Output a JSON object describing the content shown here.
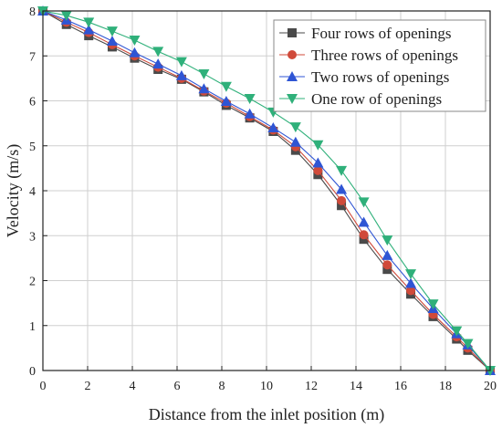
{
  "chart_data": {
    "type": "line",
    "title": "",
    "xlabel": "Distance from the inlet position (m)",
    "ylabel": "Velocity (m/s)",
    "xlim": [
      0,
      20
    ],
    "ylim": [
      0,
      8
    ],
    "xticks": [
      0,
      2,
      4,
      6,
      8,
      10,
      12,
      14,
      16,
      18,
      20
    ],
    "yticks": [
      0,
      1,
      2,
      3,
      4,
      5,
      6,
      7,
      8
    ],
    "grid": true,
    "legend_position": "top-right",
    "series": [
      {
        "name": "Four rows of openings",
        "color": "#4a4a4a",
        "marker": "square",
        "x": [
          0,
          1.05,
          2.05,
          3.1,
          4.1,
          5.15,
          6.2,
          7.2,
          8.2,
          9.25,
          10.3,
          11.3,
          12.3,
          13.35,
          14.35,
          15.4,
          16.45,
          17.45,
          18.5,
          19.0,
          20.0
        ],
        "y": [
          8.0,
          7.7,
          7.45,
          7.2,
          6.95,
          6.7,
          6.48,
          6.2,
          5.9,
          5.62,
          5.32,
          4.9,
          4.36,
          3.67,
          2.92,
          2.25,
          1.7,
          1.2,
          0.7,
          0.45,
          0.0
        ]
      },
      {
        "name": "Three rows of openings",
        "color": "#d04a3a",
        "marker": "circle",
        "x": [
          0,
          1.05,
          2.05,
          3.1,
          4.1,
          5.15,
          6.2,
          7.2,
          8.2,
          9.25,
          10.3,
          11.3,
          12.3,
          13.35,
          14.35,
          15.4,
          16.45,
          17.45,
          18.5,
          19.0,
          20.0
        ],
        "y": [
          8.0,
          7.75,
          7.52,
          7.25,
          7.0,
          6.75,
          6.5,
          6.22,
          5.95,
          5.65,
          5.35,
          4.98,
          4.45,
          3.78,
          3.02,
          2.35,
          1.78,
          1.25,
          0.75,
          0.5,
          0.0
        ]
      },
      {
        "name": "Two rows of openings",
        "color": "#2f55d4",
        "marker": "triangle-up",
        "x": [
          0,
          1.05,
          2.05,
          3.1,
          4.1,
          5.15,
          6.2,
          7.2,
          8.2,
          9.25,
          10.3,
          11.3,
          12.3,
          13.35,
          14.35,
          15.4,
          16.45,
          17.45,
          18.5,
          19.0,
          20.0
        ],
        "y": [
          8.0,
          7.8,
          7.58,
          7.33,
          7.07,
          6.82,
          6.56,
          6.27,
          5.99,
          5.71,
          5.4,
          5.08,
          4.62,
          4.03,
          3.3,
          2.56,
          1.94,
          1.38,
          0.82,
          0.57,
          0.0
        ]
      },
      {
        "name": "One row of openings",
        "color": "#2fb07a",
        "marker": "triangle-down",
        "x": [
          0,
          1.05,
          2.05,
          3.1,
          4.1,
          5.15,
          6.2,
          7.2,
          8.2,
          9.25,
          10.3,
          11.3,
          12.3,
          13.35,
          14.35,
          15.4,
          16.45,
          17.45,
          18.5,
          19.0,
          20.0
        ],
        "y": [
          8.0,
          7.9,
          7.75,
          7.55,
          7.35,
          7.1,
          6.87,
          6.6,
          6.32,
          6.05,
          5.75,
          5.42,
          5.02,
          4.45,
          3.75,
          2.9,
          2.15,
          1.48,
          0.88,
          0.6,
          0.0
        ]
      }
    ]
  }
}
